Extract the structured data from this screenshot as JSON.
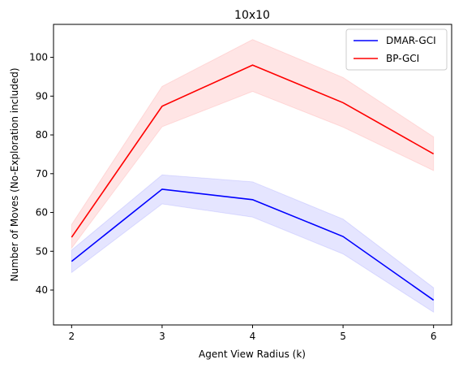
{
  "chart_data": {
    "type": "line",
    "title": "10x10",
    "xlabel": "Agent View Radius (k)",
    "ylabel": "Number of Moves (No-Exploration included)",
    "x": [
      2,
      3,
      4,
      5,
      6
    ],
    "xlim": [
      1.8,
      6.2
    ],
    "ylim": [
      31,
      108.5
    ],
    "xticks": [
      2,
      3,
      4,
      5,
      6
    ],
    "yticks": [
      40,
      50,
      60,
      70,
      80,
      90,
      100
    ],
    "grid": false,
    "legend_position": "top-right",
    "series": [
      {
        "name": "DMAR-GCI",
        "color": "#0000ff",
        "band_color": "#0000ff",
        "values": [
          47.4,
          66.0,
          63.3,
          53.8,
          37.4
        ],
        "lower": [
          44.5,
          62.2,
          58.8,
          49.3,
          34.3
        ],
        "upper": [
          50.3,
          69.7,
          67.9,
          58.3,
          40.6
        ]
      },
      {
        "name": "BP-GCI",
        "color": "#ff0000",
        "band_color": "#ff0000",
        "values": [
          53.6,
          87.4,
          98.0,
          88.3,
          75.1
        ],
        "lower": [
          50.8,
          82.1,
          91.2,
          82.0,
          70.8
        ],
        "upper": [
          56.9,
          92.5,
          104.6,
          94.8,
          79.5
        ]
      }
    ]
  }
}
